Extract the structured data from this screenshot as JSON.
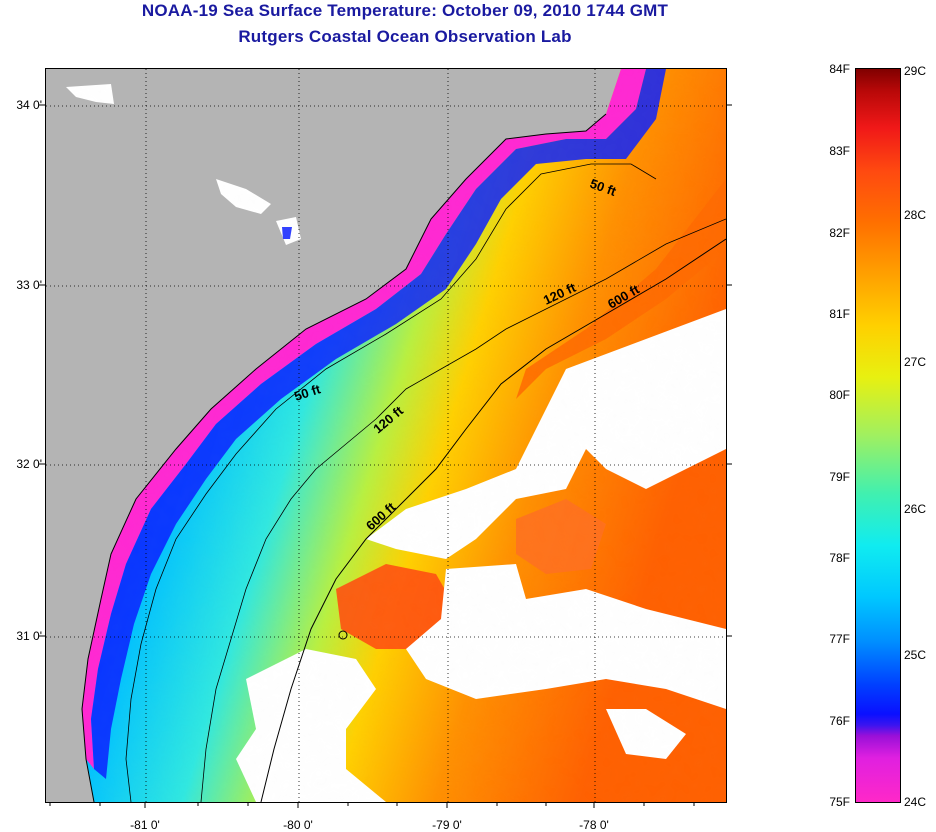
{
  "header": {
    "title": "NOAA-19 Sea Surface Temperature:  October 09, 2010 1744 GMT",
    "subtitle": "Rutgers Coastal Ocean Observation Lab"
  },
  "map": {
    "lat_labels": [
      "34 0'",
      "33 0'",
      "32 0'",
      "31 0'"
    ],
    "lon_labels": [
      "-81 0'",
      "-80 0'",
      "-79 0'",
      "-78 0'"
    ],
    "contour_labels": [
      "50 ft",
      "120 ft",
      "600 ft",
      "50 ft",
      "120 ft",
      "600 ft"
    ],
    "colors": {
      "land": "#b4b4b4",
      "cloud": "#ffffff",
      "coastal_cold": "#ff28d2",
      "inner_shelf": "#0a10ff",
      "mid_shelf": "#00c8ff",
      "outer_shelf": "#ffd000",
      "gulf_stream": "#ff6a00"
    }
  },
  "colorbar": {
    "fahrenheit": [
      "84F",
      "83F",
      "82F",
      "81F",
      "80F",
      "79F",
      "78F",
      "77F",
      "76F",
      "75F"
    ],
    "celsius": [
      "29C",
      "28C",
      "27C",
      "26C",
      "25C",
      "24C"
    ]
  }
}
